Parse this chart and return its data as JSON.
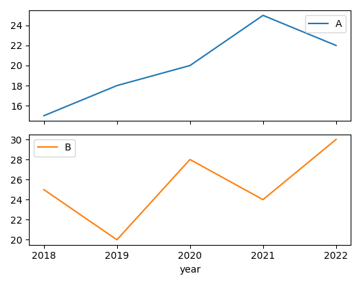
{
  "years": [
    2018,
    2019,
    2020,
    2021,
    2022
  ],
  "series_A": {
    "label": "A",
    "values": [
      15,
      18,
      20,
      25,
      22
    ],
    "color": "#1f77b4",
    "yticks": [
      16,
      18,
      20,
      22,
      24
    ],
    "ylim": [
      14.5,
      25.5
    ]
  },
  "series_B": {
    "label": "B",
    "values": [
      25,
      20,
      28,
      24,
      30
    ],
    "color": "#ff7f0e",
    "yticks": [
      20,
      22,
      24,
      26,
      28,
      30
    ],
    "ylim": [
      19.5,
      30.5
    ]
  },
  "xlabel": "year",
  "legend_loc_A": "upper right",
  "legend_loc_B": "upper left",
  "figsize": [
    5.24,
    4.13
  ],
  "dpi": 100
}
